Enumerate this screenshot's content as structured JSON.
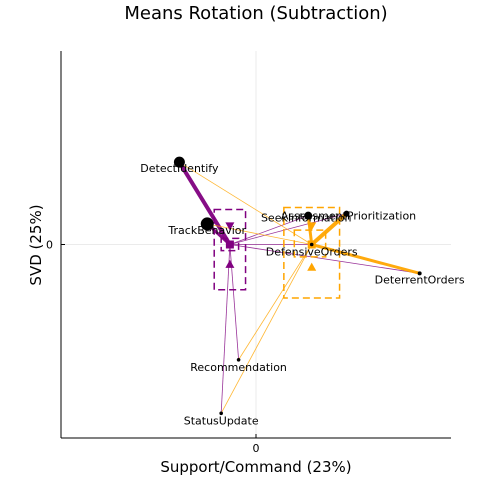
{
  "chart_data": {
    "type": "scatter",
    "title": "Means Rotation (Subtraction)",
    "xlabel": "Support/Command (23%)",
    "ylabel": "SVD (25%)",
    "xlim": [
      -0.56,
      0.56
    ],
    "ylim": [
      -0.47,
      0.47
    ],
    "xticks": [
      0
    ],
    "yticks": [
      0
    ],
    "xtick_labels": [
      "0"
    ],
    "ytick_labels": [
      "0"
    ],
    "grid": true,
    "legend": "none",
    "colors": {
      "group_a": "#800080",
      "group_b": "#ffa500",
      "item": "#000000"
    },
    "items": [
      {
        "label": "DetectIdentify",
        "x": -0.22,
        "y": 0.2
      },
      {
        "label": "TrackBehavior",
        "x": -0.14,
        "y": 0.05
      },
      {
        "label": "Recommendation",
        "x": -0.05,
        "y": -0.28
      },
      {
        "label": "StatusUpdate",
        "x": -0.1,
        "y": -0.41
      },
      {
        "label": "AssessmentPrioritization",
        "x": 0.26,
        "y": 0.075
      },
      {
        "label": "SeekInformation",
        "x": 0.15,
        "y": 0.07
      },
      {
        "label": "DefensiveOrders",
        "x": 0.16,
        "y": 0.0
      },
      {
        "label": "DeterrentOrders",
        "x": 0.47,
        "y": -0.07
      }
    ],
    "series": [
      {
        "color": "#800080",
        "mean": {
          "x": -0.075,
          "y": 0.0
        },
        "interval_x": [
          -0.12,
          -0.03
        ],
        "interval_y": [
          -0.11,
          0.085
        ],
        "variants": [
          {
            "x": -0.075,
            "y": 0.045,
            "marker": "triangle-down"
          },
          {
            "x": -0.075,
            "y": -0.048,
            "marker": "triangle-up"
          }
        ],
        "inner_box": {
          "x": [
            -0.1,
            -0.05
          ],
          "y": [
            -0.015,
            0.015
          ]
        },
        "member_weights": [
          4,
          3,
          0.8,
          0.8,
          0.8,
          0.8,
          0.8,
          0.8
        ]
      },
      {
        "color": "#ffa500",
        "mean": {
          "x": 0.16,
          "y": 0.0
        },
        "interval_x": [
          0.08,
          0.24
        ],
        "interval_y": [
          -0.13,
          0.09
        ],
        "variants": [
          {
            "x": 0.16,
            "y": 0.045,
            "marker": "triangle-down"
          },
          {
            "x": 0.16,
            "y": -0.055,
            "marker": "triangle-up"
          }
        ],
        "inner_box": {
          "x": [
            0.11,
            0.2
          ],
          "y": [
            -0.03,
            0.035
          ]
        },
        "member_weights": [
          0.8,
          0.8,
          0.8,
          0.8,
          4,
          3,
          3,
          3
        ]
      }
    ]
  }
}
